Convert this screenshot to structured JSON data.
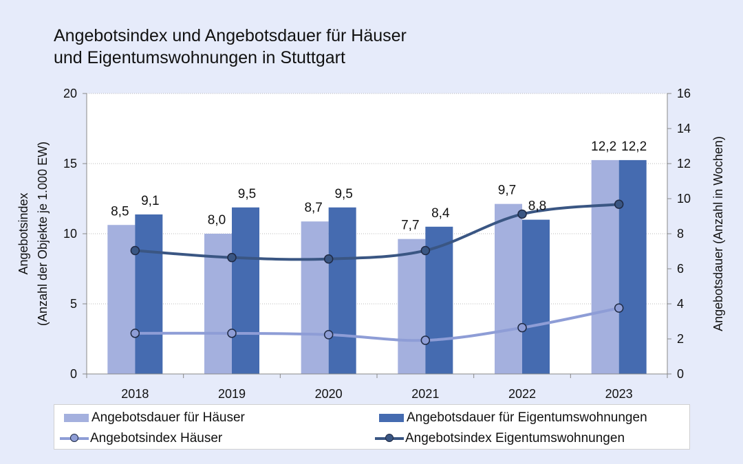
{
  "title": [
    "Angebotsindex und Angebotsdauer für Häuser",
    "und Eigentumswohnungen in Stuttgart"
  ],
  "colors": {
    "bar_houses": "#a4b0de",
    "bar_condos": "#456bb0",
    "line_houses": "#8e9dd6",
    "line_condos": "#3a5683"
  },
  "chart_data": {
    "type": "bar",
    "title": "Angebotsindex und Angebotsdauer für Häuser und Eigentumswohnungen in Stuttgart",
    "categories": [
      "2018",
      "2019",
      "2020",
      "2021",
      "2022",
      "2023"
    ],
    "y_left": {
      "label_line1": "Angebotsindex",
      "label_line2": "(Anzahl der  Objekte je 1.000 EW)",
      "ylim": [
        0,
        20
      ],
      "ticks": [
        "0",
        "5",
        "10",
        "15",
        "20"
      ]
    },
    "y_right": {
      "label": "Angebotsdauer (Anzahl in Wochen)",
      "ylim": [
        0,
        16
      ],
      "ticks": [
        "0",
        "2",
        "4",
        "6",
        "8",
        "10",
        "12",
        "14",
        "16"
      ]
    },
    "series": [
      {
        "name": "Angebotsdauer für Häuser",
        "kind": "bar",
        "axis": "right",
        "values": [
          8.5,
          8.0,
          8.7,
          7.7,
          9.7,
          12.2
        ],
        "labels": [
          "8,5",
          "8,0",
          "8,7",
          "7,7",
          "9,7",
          "12,2"
        ]
      },
      {
        "name": "Angebotsdauer für Eigentumswohnungen",
        "kind": "bar",
        "axis": "right",
        "values": [
          9.1,
          9.5,
          9.5,
          8.4,
          8.8,
          12.2
        ],
        "labels": [
          "9,1",
          "9,5",
          "9,5",
          "8,4",
          "8,8",
          "12,2"
        ]
      },
      {
        "name": "Angebotsindex Häuser",
        "kind": "line",
        "axis": "left",
        "values": [
          2.9,
          2.9,
          2.8,
          2.4,
          3.3,
          4.7
        ]
      },
      {
        "name": "Angebotsindex Eigentumswohnungen",
        "kind": "line",
        "axis": "left",
        "values": [
          8.8,
          8.3,
          8.2,
          8.8,
          11.4,
          12.1
        ]
      }
    ]
  }
}
